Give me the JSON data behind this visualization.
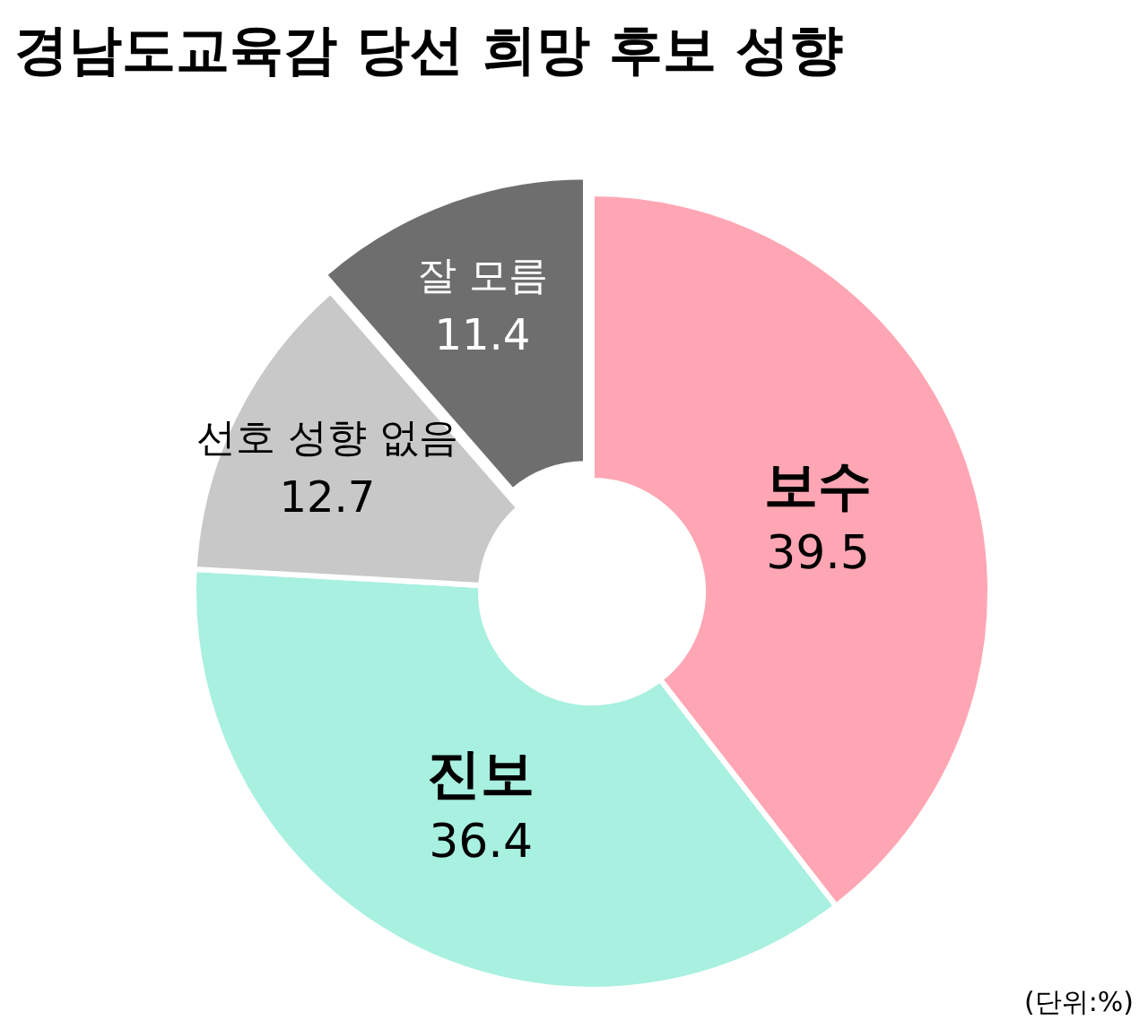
{
  "chart_data": {
    "type": "donut",
    "title": "경남도교육감 당선 희망 후보 성향",
    "categories": [
      "보수",
      "진보",
      "선호 성향 없음",
      "잘 모름"
    ],
    "values": [
      39.5,
      36.4,
      12.7,
      11.4
    ],
    "colors": [
      "#ffa6b4",
      "#a8f0e0",
      "#c8c8c8",
      "#6e6e6e"
    ],
    "data_labels": true,
    "annotations": [
      "(단위:%)"
    ]
  }
}
